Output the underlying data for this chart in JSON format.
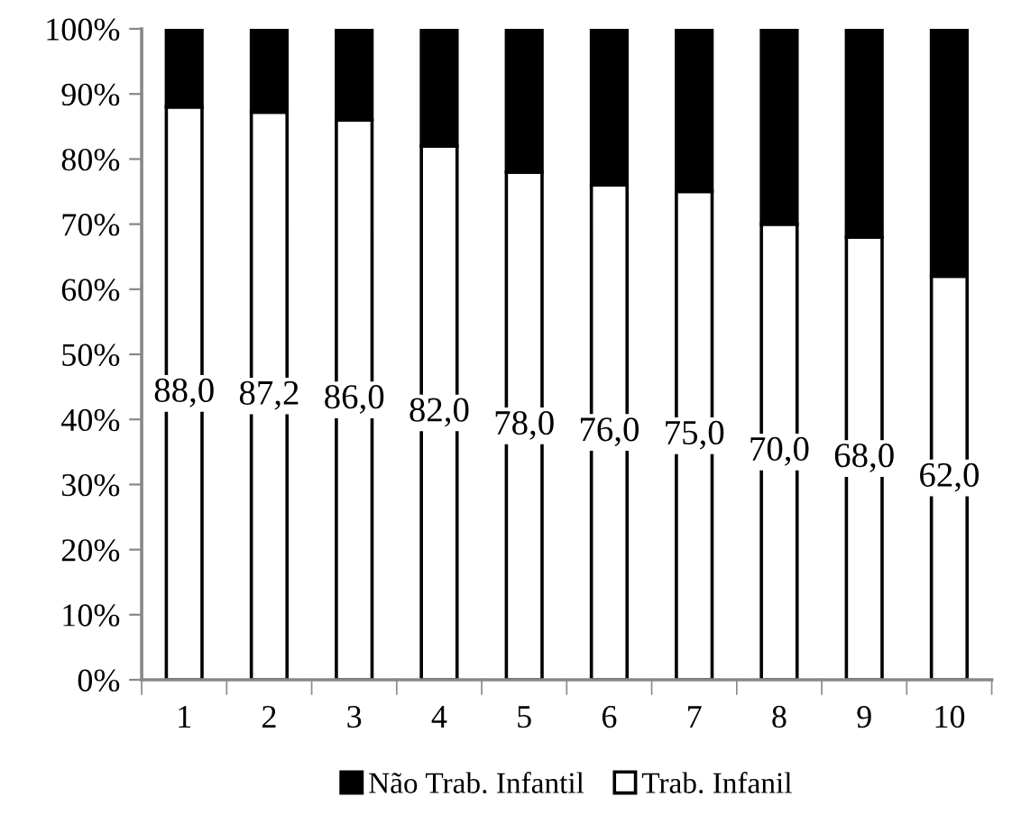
{
  "chart_data": {
    "type": "bar",
    "stacked": true,
    "categories": [
      "1",
      "2",
      "3",
      "4",
      "5",
      "6",
      "7",
      "8",
      "9",
      "10"
    ],
    "series": [
      {
        "name": "Trab. Infanil",
        "color": "#ffffff",
        "values": [
          88.0,
          87.2,
          86.0,
          82.0,
          78.0,
          76.0,
          75.0,
          70.0,
          68.0,
          62.0
        ],
        "value_labels": [
          "88,0",
          "87,2",
          "86,0",
          "82,0",
          "78,0",
          "76,0",
          "75,0",
          "70,0",
          "68,0",
          "62,0"
        ]
      },
      {
        "name": "Não Trab. Infantil",
        "color": "#000000",
        "values": [
          12.0,
          12.8,
          14.0,
          18.0,
          22.0,
          24.0,
          25.0,
          30.0,
          32.0,
          38.0
        ]
      }
    ],
    "ylim": [
      0,
      100
    ],
    "yticks": [
      {
        "value": 0,
        "label": "0%"
      },
      {
        "value": 10,
        "label": "10%"
      },
      {
        "value": 20,
        "label": "20%"
      },
      {
        "value": 30,
        "label": "30%"
      },
      {
        "value": 40,
        "label": "40%"
      },
      {
        "value": 50,
        "label": "50%"
      },
      {
        "value": 60,
        "label": "60%"
      },
      {
        "value": 70,
        "label": "70%"
      },
      {
        "value": 80,
        "label": "80%"
      },
      {
        "value": 90,
        "label": "90%"
      },
      {
        "value": 100,
        "label": "100%"
      }
    ],
    "grid": false,
    "legend": "bottom"
  }
}
